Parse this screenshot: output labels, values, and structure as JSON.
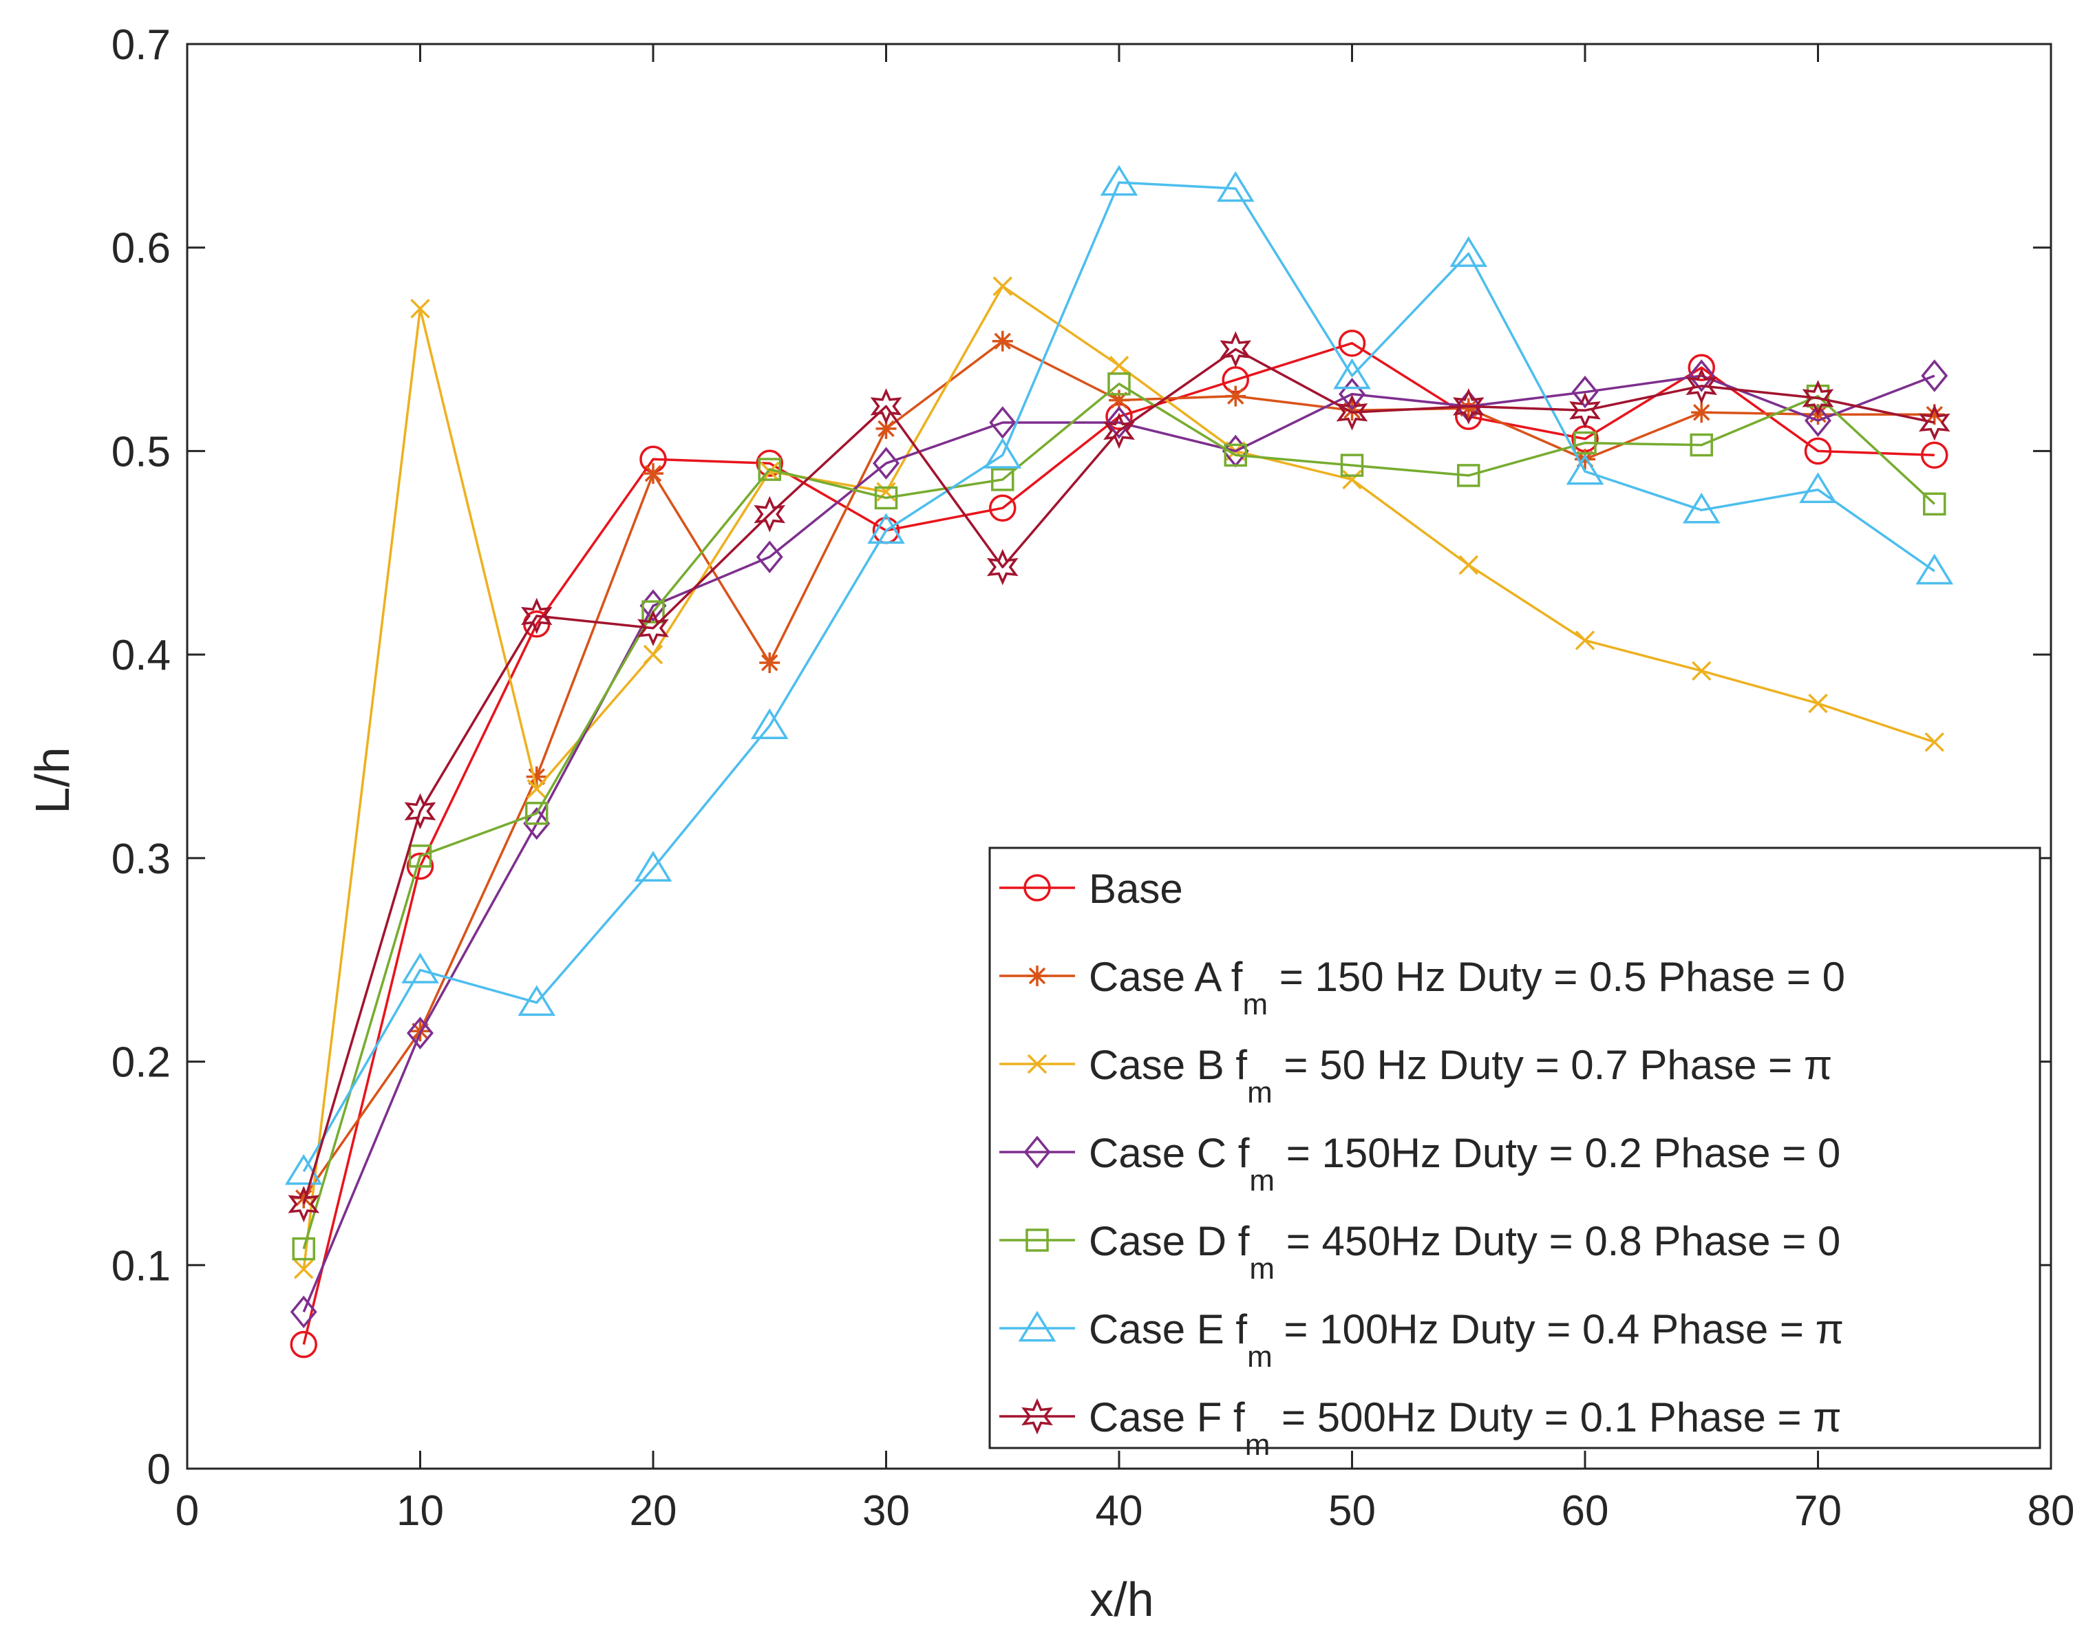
{
  "chart_data": {
    "type": "line",
    "title": "",
    "xlabel": "x/h",
    "ylabel": "L/h",
    "xlim": [
      0,
      80
    ],
    "ylim": [
      0,
      0.7
    ],
    "xticks": [
      0,
      10,
      20,
      30,
      40,
      50,
      60,
      70,
      80
    ],
    "yticks": [
      0,
      0.1,
      0.2,
      0.3,
      0.4,
      0.5,
      0.6,
      0.7
    ],
    "xtick_labels": [
      "0",
      "10",
      "20",
      "30",
      "40",
      "50",
      "60",
      "70",
      "80"
    ],
    "ytick_labels": [
      "0",
      "0.1",
      "0.2",
      "0.3",
      "0.4",
      "0.5",
      "0.6",
      "0.7"
    ],
    "grid": false,
    "legend_position": "bottom-right",
    "x": [
      5,
      10,
      15,
      20,
      25,
      30,
      35,
      40,
      45,
      50,
      55,
      60,
      65,
      70,
      75
    ],
    "series": [
      {
        "name": "Base",
        "legend": {
          "pre": "Base",
          "sub": "",
          "post": ""
        },
        "color": "#e8141c",
        "marker": "circle",
        "values": [
          0.061,
          0.296,
          0.415,
          0.496,
          0.494,
          0.461,
          0.472,
          0.517,
          0.535,
          0.553,
          0.517,
          0.506,
          0.541,
          0.5,
          0.498
        ]
      },
      {
        "name": "Case A fm = 150 Hz Duty = 0.5 Phase = 0",
        "legend": {
          "pre": "Case A f",
          "sub": "m",
          "post": " = 150 Hz Duty = 0.5 Phase = 0"
        },
        "color": "#d95319",
        "marker": "asterisk",
        "values": [
          0.133,
          0.215,
          0.34,
          0.489,
          0.396,
          0.511,
          0.554,
          0.525,
          0.527,
          0.52,
          0.521,
          0.496,
          0.519,
          0.518,
          0.518
        ]
      },
      {
        "name": "Case B fm = 50 Hz Duty = 0.7 Phase = π",
        "legend": {
          "pre": "Case B f",
          "sub": "m",
          "post": " = 50 Hz Duty = 0.7 Phase = π"
        },
        "color": "#edb120",
        "marker": "x",
        "values": [
          0.098,
          0.57,
          0.334,
          0.4,
          0.49,
          0.48,
          0.581,
          0.542,
          0.5,
          0.486,
          0.444,
          0.407,
          0.392,
          0.376,
          0.357
        ]
      },
      {
        "name": "Case C fm = 150Hz Duty = 0.2 Phase = 0",
        "legend": {
          "pre": "Case C f",
          "sub": "m",
          "post": " = 150Hz Duty = 0.2 Phase = 0"
        },
        "color": "#7e2f8e",
        "marker": "diamond",
        "values": [
          0.077,
          0.214,
          0.317,
          0.424,
          0.448,
          0.494,
          0.514,
          0.514,
          0.5,
          0.528,
          0.522,
          0.529,
          0.537,
          0.515,
          0.537
        ]
      },
      {
        "name": "Case D fm = 450Hz Duty = 0.8 Phase = 0",
        "legend": {
          "pre": "Case D f",
          "sub": "m",
          "post": " = 450Hz Duty = 0.8 Phase = 0"
        },
        "color": "#77ac30",
        "marker": "square",
        "values": [
          0.108,
          0.301,
          0.322,
          0.421,
          0.491,
          0.477,
          0.486,
          0.533,
          0.498,
          0.493,
          0.488,
          0.504,
          0.503,
          0.527,
          0.474
        ]
      },
      {
        "name": "Case E fm = 100Hz Duty = 0.4 Phase = π",
        "legend": {
          "pre": "Case E f",
          "sub": "m",
          "post": " = 100Hz Duty = 0.4 Phase = π"
        },
        "color": "#4dbeee",
        "marker": "triangle",
        "values": [
          0.146,
          0.245,
          0.229,
          0.295,
          0.365,
          0.461,
          0.498,
          0.632,
          0.629,
          0.537,
          0.597,
          0.49,
          0.471,
          0.481,
          0.441
        ]
      },
      {
        "name": "Case F fm = 500Hz Duty = 0.1 Phase = π",
        "legend": {
          "pre": "Case F f",
          "sub": "m",
          "post": " = 500Hz Duty = 0.1 Phase = π"
        },
        "color": "#a2142f",
        "marker": "hexagram",
        "values": [
          0.13,
          0.323,
          0.419,
          0.413,
          0.469,
          0.522,
          0.443,
          0.51,
          0.55,
          0.519,
          0.522,
          0.52,
          0.532,
          0.526,
          0.514
        ]
      }
    ]
  }
}
